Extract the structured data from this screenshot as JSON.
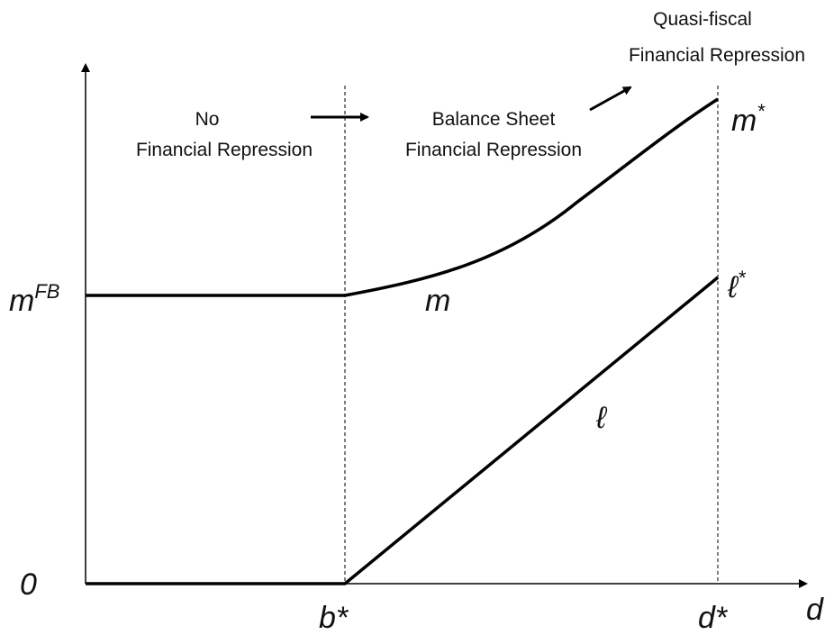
{
  "regimes": [
    {
      "lines": [
        "No",
        "Financial Repression"
      ]
    },
    {
      "lines": [
        "Balance Sheet",
        "Financial Repression"
      ]
    },
    {
      "lines": [
        "Quasi-fiscal",
        "Financial Repression"
      ]
    }
  ],
  "labels": {
    "m_star": {
      "base": "m",
      "sup": "*"
    },
    "m_fb": {
      "base": "m",
      "sup": "FB"
    },
    "m": "m",
    "l_star": {
      "base": "ℓ",
      "sup": "*"
    },
    "l": "ℓ",
    "origin": "0",
    "b_star": "b*",
    "d_star": "d*",
    "x_axis": "d"
  }
}
